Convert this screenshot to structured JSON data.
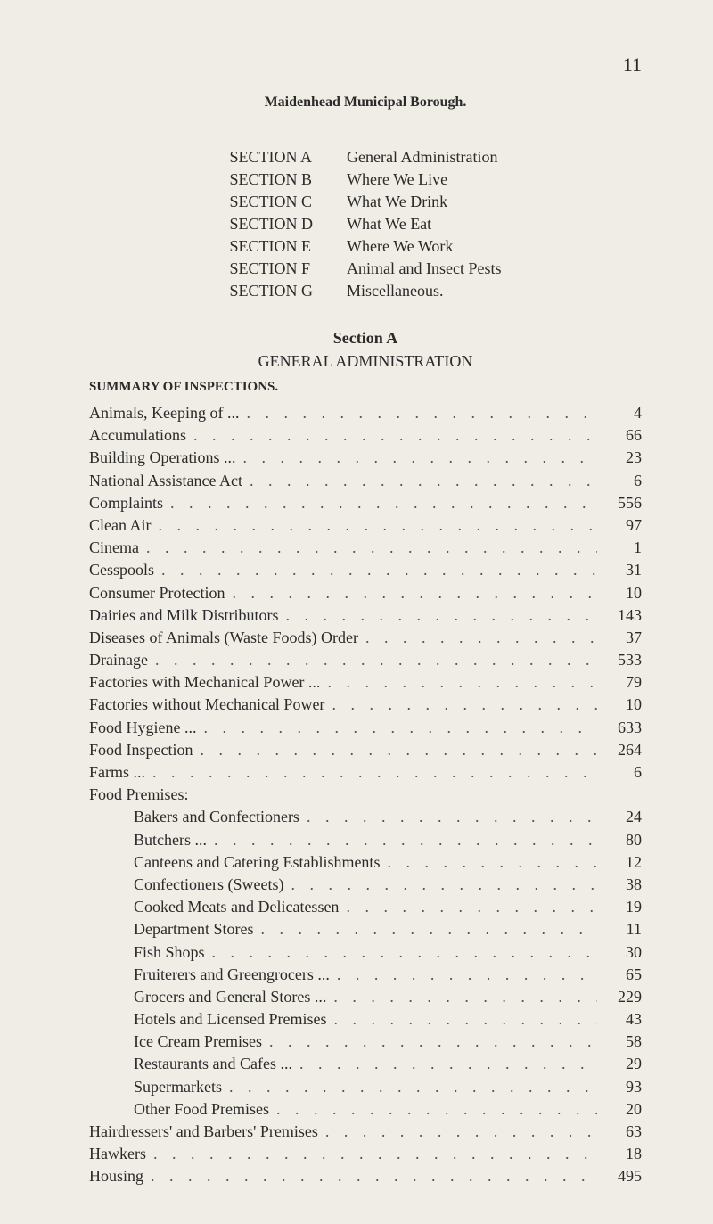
{
  "page_number": "11",
  "doc_title": "Maidenhead Municipal Borough.",
  "sections": [
    {
      "label": "SECTION A",
      "desc": "General Administration"
    },
    {
      "label": "SECTION B",
      "desc": "Where We Live"
    },
    {
      "label": "SECTION C",
      "desc": "What We Drink"
    },
    {
      "label": "SECTION D",
      "desc": "What We Eat"
    },
    {
      "label": "SECTION E",
      "desc": "Where We Work"
    },
    {
      "label": "SECTION F",
      "desc": "Animal and Insect Pests"
    },
    {
      "label": "SECTION G",
      "desc": "Miscellaneous."
    }
  ],
  "section_a_label": "Section A",
  "admin_label": "GENERAL ADMINISTRATION",
  "summary_label": "SUMMARY OF INSPECTIONS.",
  "inspections": [
    {
      "label": "Animals, Keeping of ...",
      "value": "4"
    },
    {
      "label": "Accumulations",
      "value": "66"
    },
    {
      "label": "Building Operations ...",
      "value": "23"
    },
    {
      "label": "National Assistance Act",
      "value": "6"
    },
    {
      "label": "Complaints",
      "value": "556"
    },
    {
      "label": "Clean Air",
      "value": "97"
    },
    {
      "label": "Cinema",
      "value": "1"
    },
    {
      "label": "Cesspools",
      "value": "31"
    },
    {
      "label": "Consumer Protection",
      "value": "10"
    },
    {
      "label": "Dairies and Milk Distributors",
      "value": "143"
    },
    {
      "label": "Diseases of Animals (Waste Foods) Order",
      "value": "37"
    },
    {
      "label": "Drainage",
      "value": "533"
    },
    {
      "label": "Factories with Mechanical Power ...",
      "value": "79"
    },
    {
      "label": "Factories without Mechanical Power",
      "value": "10"
    },
    {
      "label": "Food Hygiene ...",
      "value": "633"
    },
    {
      "label": "Food Inspection",
      "value": "264"
    },
    {
      "label": "Farms ...",
      "value": "6"
    }
  ],
  "food_premises_label": "Food Premises:",
  "food_premises": [
    {
      "label": "Bakers and Confectioners",
      "value": "24"
    },
    {
      "label": "Butchers ...",
      "value": "80"
    },
    {
      "label": "Canteens and Catering Establishments",
      "value": "12"
    },
    {
      "label": "Confectioners (Sweets)",
      "value": "38"
    },
    {
      "label": "Cooked Meats and Delicatessen",
      "value": "19"
    },
    {
      "label": "Department Stores",
      "value": "11"
    },
    {
      "label": "Fish Shops",
      "value": "30"
    },
    {
      "label": "Fruiterers and Greengrocers  ...",
      "value": "65"
    },
    {
      "label": "Grocers and General Stores  ...",
      "value": "229"
    },
    {
      "label": "Hotels and Licensed Premises",
      "value": "43"
    },
    {
      "label": "Ice Cream Premises",
      "value": "58"
    },
    {
      "label": "Restaurants and Cafes ...",
      "value": "29"
    },
    {
      "label": "Supermarkets",
      "value": "93"
    },
    {
      "label": "Other Food Premises",
      "value": "20"
    }
  ],
  "tail_inspections": [
    {
      "label": "Hairdressers' and Barbers' Premises",
      "value": "63"
    },
    {
      "label": "Hawkers",
      "value": "18"
    },
    {
      "label": "Housing",
      "value": "495"
    }
  ],
  "dot_fill": ". . . . . . . . . . . . . . . . . . . . . . . . . . . . . . . . . ."
}
